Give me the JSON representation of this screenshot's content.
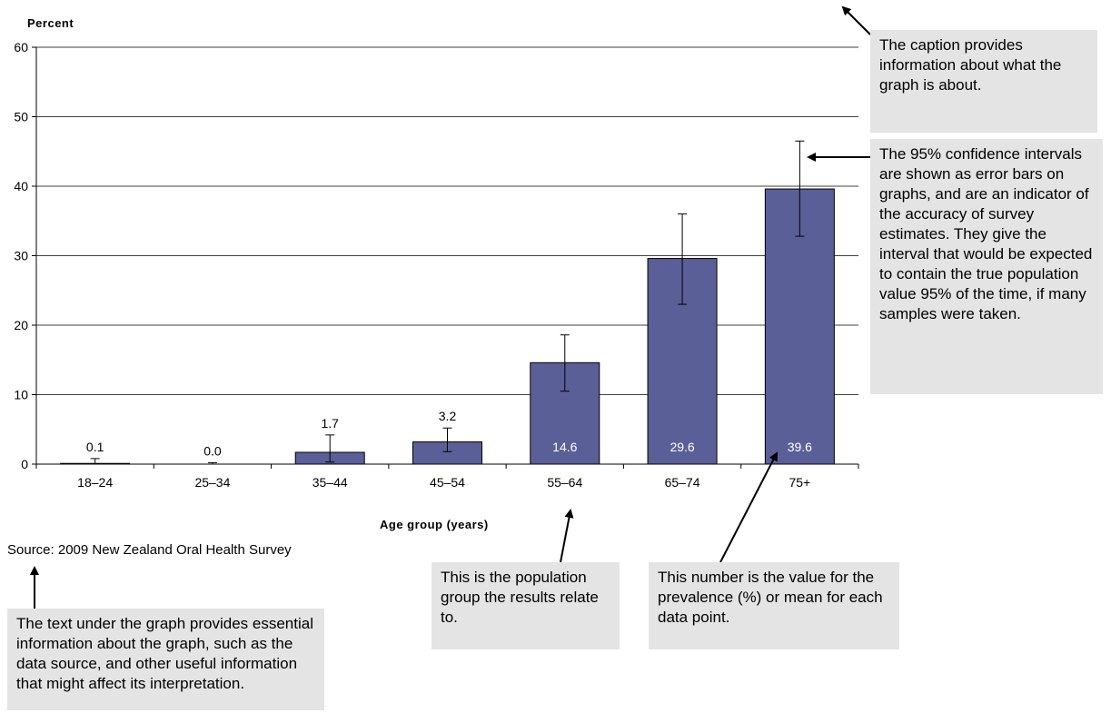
{
  "chart_data": {
    "type": "bar",
    "ylabel": "Percent",
    "xlabel": "Age group (years)",
    "ylim": [
      0,
      60
    ],
    "yticks": [
      0,
      10,
      20,
      30,
      40,
      50,
      60
    ],
    "grid": true,
    "categories": [
      "18–24",
      "25–34",
      "35–44",
      "45–54",
      "55–64",
      "65–74",
      "75+"
    ],
    "values": [
      0.1,
      0.0,
      1.7,
      3.2,
      14.6,
      29.6,
      39.6
    ],
    "value_labels": [
      "0.1",
      "0.0",
      "1.7",
      "3.2",
      "14.6",
      "29.6",
      "39.6"
    ],
    "ci_lower": [
      0.0,
      0.0,
      0.3,
      1.8,
      10.5,
      23.0,
      32.8
    ],
    "ci_upper": [
      0.8,
      0.2,
      4.2,
      5.2,
      18.6,
      36.0,
      46.5
    ],
    "bar_color": "#5b5f97"
  },
  "source": "Source: 2009 New Zealand Oral Health Survey",
  "notes": {
    "caption": "The caption provides information about what the graph is about.",
    "ci": "The 95% confidence intervals are shown as error bars on graphs, and are an indicator of the accuracy of survey estimates.  They give the interval that would be expected to contain the true population value 95% of the time, if many samples were taken.",
    "population": "This is the population group the results relate to.",
    "value": "This number is the value for the prevalence (%) or mean for each data point.",
    "text_under": "The text under the graph provides essential information about the graph, such as the data source, and other useful information that might affect its interpretation."
  },
  "colors": {
    "note_bg": "#e4e4e4",
    "bar": "#5b5f97",
    "axis": "#000000"
  }
}
